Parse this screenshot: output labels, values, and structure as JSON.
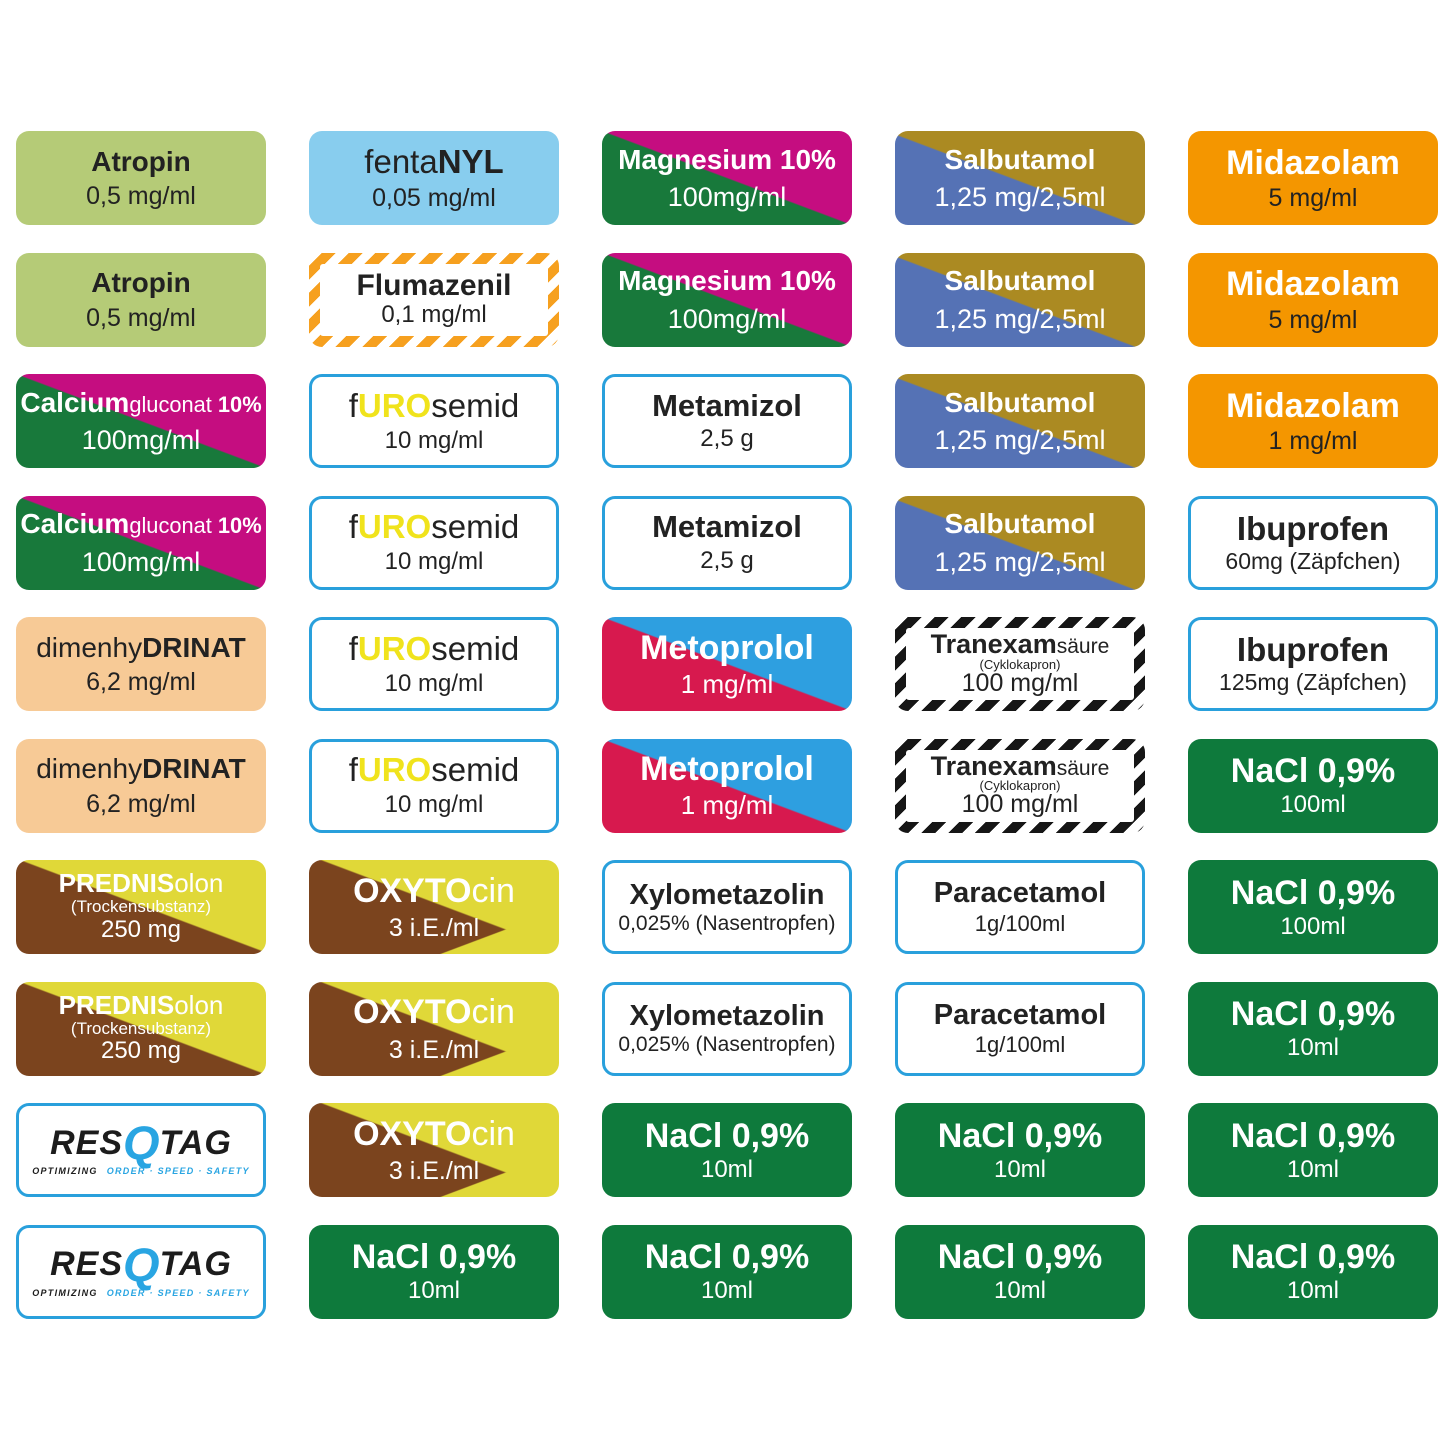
{
  "page": {
    "description": "Sheet of RESQTAG medication syringe labels, 5 columns x 10 rows",
    "background": "#ffffff"
  },
  "palette": {
    "atropin_green": "#b5cb77",
    "fentanyl_blue": "#88cdee",
    "magenta": "#c50d80",
    "dark_green": "#18793b",
    "salbutamol_blue": "#5572b5",
    "salbutamol_gold": "#ab8a22",
    "midazolam_orange": "#f49600",
    "flumazenil_stripe_orange": "#f6a01f",
    "furosemid_yellow": "#f0e31c",
    "metoprolol_red": "#d7194e",
    "metoprolol_blue": "#2e9fe0",
    "dimenhydrinat_peach": "#f7ca96",
    "prednisolon_brown": "#7b441e",
    "prednisolon_yellow": "#e0d838",
    "nacl_green": "#0e7a3c",
    "outline_blue": "#29a0dc",
    "tranexam_stripe_black": "#161616",
    "resqtag_blue": "#29a5e2",
    "text_dark": "#222222",
    "text_white": "#ffffff"
  },
  "grid": {
    "cells": [
      {
        "style": "atropin",
        "name": [
          {
            "t": "Atropin",
            "w": "b"
          }
        ],
        "dose": "0,5 mg/ml"
      },
      {
        "style": "fentanyl",
        "name": [
          {
            "t": "fenta",
            "w": "r"
          },
          {
            "t": "NYL",
            "w": "b"
          }
        ],
        "dose": "0,05 mg/ml"
      },
      {
        "style": "magnesium",
        "name": [
          {
            "t": "Magnesium 10%",
            "w": "b"
          }
        ],
        "dose": "100mg/ml"
      },
      {
        "style": "salbutamol",
        "name": [
          {
            "t": "Salbutamol",
            "w": "b"
          }
        ],
        "dose": "1,25 mg/2,5ml"
      },
      {
        "style": "midazolam",
        "name": [
          {
            "t": "Midazolam",
            "w": "b"
          }
        ],
        "dose": "5 mg/ml"
      },
      {
        "style": "atropin",
        "name": [
          {
            "t": "Atropin",
            "w": "b"
          }
        ],
        "dose": "0,5 mg/ml"
      },
      {
        "style": "flumazenil",
        "name": [
          {
            "t": "Flumazenil",
            "w": "b"
          }
        ],
        "dose": "0,1 mg/ml"
      },
      {
        "style": "magnesium",
        "name": [
          {
            "t": "Magnesium 10%",
            "w": "b"
          }
        ],
        "dose": "100mg/ml"
      },
      {
        "style": "salbutamol",
        "name": [
          {
            "t": "Salbutamol",
            "w": "b"
          }
        ],
        "dose": "1,25 mg/2,5ml"
      },
      {
        "style": "midazolam",
        "name": [
          {
            "t": "Midazolam",
            "w": "b"
          }
        ],
        "dose": "5 mg/ml"
      },
      {
        "style": "calcium",
        "name": [
          {
            "t": "Calcium",
            "w": "b"
          },
          {
            "t": "gluconat",
            "w": "sr"
          },
          {
            "t": " 10%",
            "w": "sb"
          }
        ],
        "dose": "100mg/ml"
      },
      {
        "style": "furosemid",
        "name": [
          {
            "t": "f",
            "w": "r"
          },
          {
            "t": "URO",
            "w": "yb"
          },
          {
            "t": "semid",
            "w": "r"
          }
        ],
        "dose": "10 mg/ml"
      },
      {
        "style": "metamizol",
        "name": [
          {
            "t": "Metamizol",
            "w": "b"
          }
        ],
        "dose": "2,5 g"
      },
      {
        "style": "salbutamol",
        "name": [
          {
            "t": "Salbutamol",
            "w": "b"
          }
        ],
        "dose": "1,25 mg/2,5ml"
      },
      {
        "style": "midazolam",
        "name": [
          {
            "t": "Midazolam",
            "w": "b"
          }
        ],
        "dose": "1 mg/ml"
      },
      {
        "style": "calcium",
        "name": [
          {
            "t": "Calcium",
            "w": "b"
          },
          {
            "t": "gluconat",
            "w": "sr"
          },
          {
            "t": " 10%",
            "w": "sb"
          }
        ],
        "dose": "100mg/ml"
      },
      {
        "style": "furosemid",
        "name": [
          {
            "t": "f",
            "w": "r"
          },
          {
            "t": "URO",
            "w": "yb"
          },
          {
            "t": "semid",
            "w": "r"
          }
        ],
        "dose": "10 mg/ml"
      },
      {
        "style": "metamizol",
        "name": [
          {
            "t": "Metamizol",
            "w": "b"
          }
        ],
        "dose": "2,5 g"
      },
      {
        "style": "salbutamol",
        "name": [
          {
            "t": "Salbutamol",
            "w": "b"
          }
        ],
        "dose": "1,25 mg/2,5ml"
      },
      {
        "style": "ibuprofen",
        "name": [
          {
            "t": "Ibuprofen",
            "w": "b"
          }
        ],
        "dose": "60mg (Zäpfchen)"
      },
      {
        "style": "dimenhydrinat",
        "name": [
          {
            "t": "dimenhy",
            "w": "r"
          },
          {
            "t": "DRINAT",
            "w": "b"
          }
        ],
        "dose": "6,2 mg/ml"
      },
      {
        "style": "furosemid",
        "name": [
          {
            "t": "f",
            "w": "r"
          },
          {
            "t": "URO",
            "w": "yb"
          },
          {
            "t": "semid",
            "w": "r"
          }
        ],
        "dose": "10 mg/ml"
      },
      {
        "style": "metoprolol",
        "name": [
          {
            "t": "Metoprolol",
            "w": "b"
          }
        ],
        "dose": "1 mg/ml"
      },
      {
        "style": "tranexam",
        "name": [
          {
            "t": "Tranexam",
            "w": "b"
          },
          {
            "t": "säure",
            "w": "sr"
          }
        ],
        "sub": "(Cyklokapron)",
        "dose": "100 mg/ml"
      },
      {
        "style": "ibuprofen",
        "name": [
          {
            "t": "Ibuprofen",
            "w": "b"
          }
        ],
        "dose": "125mg (Zäpfchen)"
      },
      {
        "style": "dimenhydrinat",
        "name": [
          {
            "t": "dimenhy",
            "w": "r"
          },
          {
            "t": "DRINAT",
            "w": "b"
          }
        ],
        "dose": "6,2 mg/ml"
      },
      {
        "style": "furosemid",
        "name": [
          {
            "t": "f",
            "w": "r"
          },
          {
            "t": "URO",
            "w": "yb"
          },
          {
            "t": "semid",
            "w": "r"
          }
        ],
        "dose": "10 mg/ml"
      },
      {
        "style": "metoprolol",
        "name": [
          {
            "t": "Metoprolol",
            "w": "b"
          }
        ],
        "dose": "1 mg/ml"
      },
      {
        "style": "tranexam",
        "name": [
          {
            "t": "Tranexam",
            "w": "b"
          },
          {
            "t": "säure",
            "w": "sr"
          }
        ],
        "sub": "(Cyklokapron)",
        "dose": "100 mg/ml"
      },
      {
        "style": "nacl",
        "name": [
          {
            "t": "NaCl 0,9%",
            "w": "b"
          }
        ],
        "dose": "100ml"
      },
      {
        "style": "prednisolon",
        "name": [
          {
            "t": "PREDNIS",
            "w": "b"
          },
          {
            "t": "olon",
            "w": "r"
          }
        ],
        "sub": "(Trockensubstanz)",
        "dose": "250 mg"
      },
      {
        "style": "oxytocin",
        "name": [
          {
            "t": "OXYTO",
            "w": "b"
          },
          {
            "t": "cin",
            "w": "r"
          }
        ],
        "dose": "3 i.E./ml"
      },
      {
        "style": "xylometazolin",
        "name": [
          {
            "t": "Xylometazolin",
            "w": "b"
          }
        ],
        "dose": "0,025% (Nasentropfen)"
      },
      {
        "style": "paracetamol",
        "name": [
          {
            "t": "Paracetamol",
            "w": "b"
          }
        ],
        "dose": "1g/100ml"
      },
      {
        "style": "nacl",
        "name": [
          {
            "t": "NaCl 0,9%",
            "w": "b"
          }
        ],
        "dose": "100ml"
      },
      {
        "style": "prednisolon",
        "name": [
          {
            "t": "PREDNIS",
            "w": "b"
          },
          {
            "t": "olon",
            "w": "r"
          }
        ],
        "sub": "(Trockensubstanz)",
        "dose": "250 mg"
      },
      {
        "style": "oxytocin",
        "name": [
          {
            "t": "OXYTO",
            "w": "b"
          },
          {
            "t": "cin",
            "w": "r"
          }
        ],
        "dose": "3 i.E./ml"
      },
      {
        "style": "xylometazolin",
        "name": [
          {
            "t": "Xylometazolin",
            "w": "b"
          }
        ],
        "dose": "0,025% (Nasentropfen)"
      },
      {
        "style": "paracetamol",
        "name": [
          {
            "t": "Paracetamol",
            "w": "b"
          }
        ],
        "dose": "1g/100ml"
      },
      {
        "style": "nacl",
        "name": [
          {
            "t": "NaCl 0,9%",
            "w": "b"
          }
        ],
        "dose": "10ml"
      },
      {
        "style": "resqtag",
        "name": [
          {
            "t": "RES",
            "w": "lb"
          },
          {
            "t": "Q",
            "w": "lq"
          },
          {
            "t": "TAG",
            "w": "lb"
          }
        ],
        "tagline": [
          "OPTIMIZING",
          "ORDER · SPEED · SAFETY"
        ]
      },
      {
        "style": "oxytocin",
        "name": [
          {
            "t": "OXYTO",
            "w": "b"
          },
          {
            "t": "cin",
            "w": "r"
          }
        ],
        "dose": "3 i.E./ml"
      },
      {
        "style": "nacl",
        "name": [
          {
            "t": "NaCl 0,9%",
            "w": "b"
          }
        ],
        "dose": "10ml"
      },
      {
        "style": "nacl",
        "name": [
          {
            "t": "NaCl 0,9%",
            "w": "b"
          }
        ],
        "dose": "10ml"
      },
      {
        "style": "nacl",
        "name": [
          {
            "t": "NaCl 0,9%",
            "w": "b"
          }
        ],
        "dose": "10ml"
      },
      {
        "style": "resqtag",
        "name": [
          {
            "t": "RES",
            "w": "lb"
          },
          {
            "t": "Q",
            "w": "lq"
          },
          {
            "t": "TAG",
            "w": "lb"
          }
        ],
        "tagline": [
          "OPTIMIZING",
          "ORDER · SPEED · SAFETY"
        ]
      },
      {
        "style": "nacl",
        "name": [
          {
            "t": "NaCl 0,9%",
            "w": "b"
          }
        ],
        "dose": "10ml"
      },
      {
        "style": "nacl",
        "name": [
          {
            "t": "NaCl 0,9%",
            "w": "b"
          }
        ],
        "dose": "10ml"
      },
      {
        "style": "nacl",
        "name": [
          {
            "t": "NaCl 0,9%",
            "w": "b"
          }
        ],
        "dose": "10ml"
      },
      {
        "style": "nacl",
        "name": [
          {
            "t": "NaCl 0,9%",
            "w": "b"
          }
        ],
        "dose": "10ml"
      }
    ]
  }
}
